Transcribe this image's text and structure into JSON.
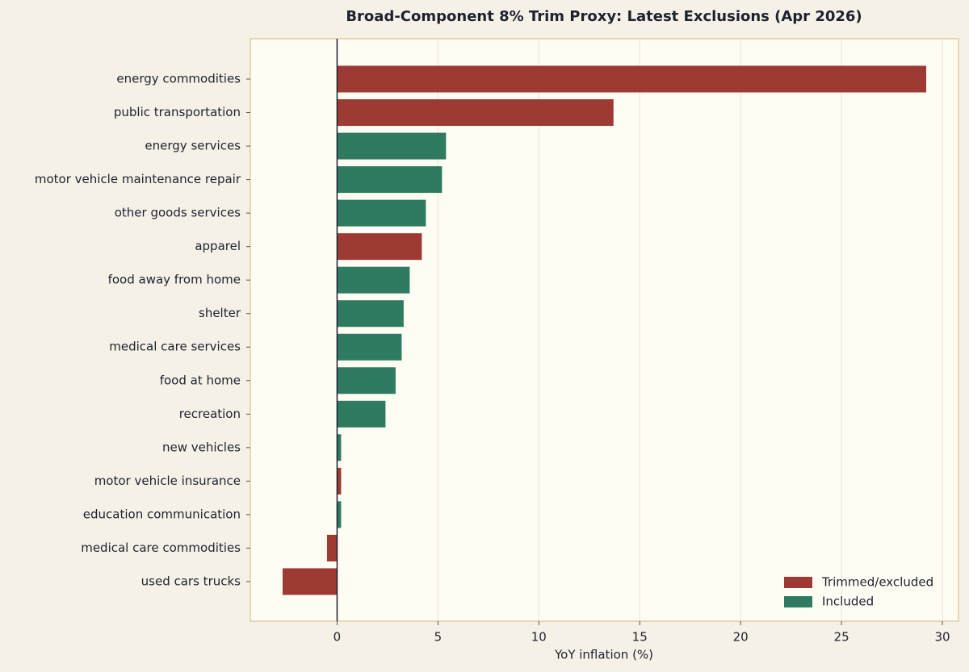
{
  "chart_data": {
    "type": "hbar",
    "title": "Broad-Component 8% Trim Proxy: Latest Exclusions (Apr 2026)",
    "x_label": "YoY inflation (%)",
    "categories": [
      "energy commodities",
      "public transportation",
      "energy services",
      "motor vehicle maintenance repair",
      "other goods services",
      "apparel",
      "food away from home",
      "shelter",
      "medical care services",
      "food at home",
      "recreation",
      "new vehicles",
      "motor vehicle insurance",
      "education communication",
      "medical care commodities",
      "used cars trucks"
    ],
    "series": [
      {
        "name": "Trimmed/excluded",
        "color": "#9c3a33",
        "values": [
          29.2,
          13.7,
          null,
          null,
          null,
          4.2,
          null,
          null,
          null,
          null,
          null,
          null,
          0.2,
          null,
          -0.5,
          -2.7
        ]
      },
      {
        "name": "Included",
        "color": "#2e7b62",
        "values": [
          null,
          null,
          5.4,
          5.2,
          4.4,
          null,
          3.6,
          3.3,
          3.2,
          2.9,
          2.4,
          0.2,
          null,
          0.2,
          null,
          null
        ]
      }
    ],
    "xlim": [
      -4.3,
      30.8
    ],
    "xticks": [
      0,
      5,
      10,
      15,
      20,
      25,
      30
    ],
    "grid": true,
    "legend": "lower right"
  }
}
